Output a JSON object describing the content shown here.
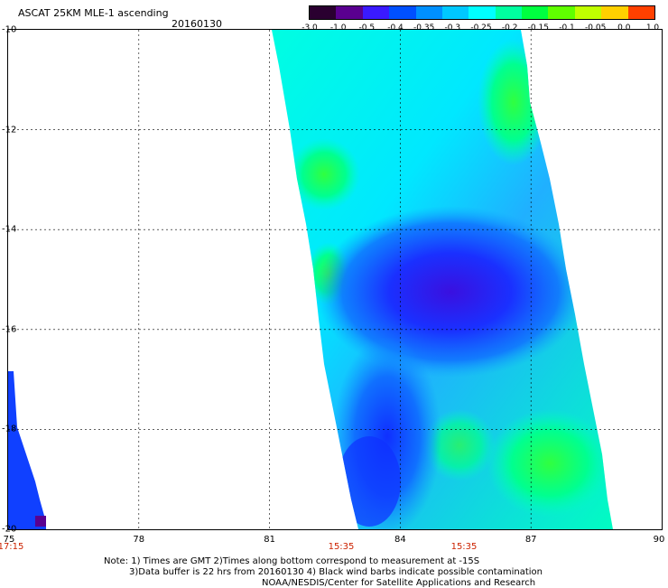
{
  "header": {
    "title": "ASCAT 25KM MLE-1 ascending",
    "date": "20160130"
  },
  "colorbar": {
    "labels": [
      "-3.0",
      "-1.0",
      "-0.5",
      "-0.4",
      "-0.35",
      "-0.3",
      "-0.25",
      "-0.2",
      "-0.15",
      "-0.1",
      "-0.05",
      "0.0",
      "1.0"
    ],
    "colors": [
      "#2a0030",
      "#5a0090",
      "#3a1aff",
      "#0050ff",
      "#0090ff",
      "#00c8ff",
      "#00ffff",
      "#00ffa0",
      "#00ff40",
      "#60ff00",
      "#c0ff00",
      "#ffd000",
      "#ff4000"
    ]
  },
  "axes": {
    "lat_labels": [
      "-10",
      "-12",
      "-14",
      "-16",
      "-18",
      "-20"
    ],
    "lon_labels": [
      "75",
      "78",
      "81",
      "84",
      "87",
      "90"
    ],
    "time_labels": [
      "17:15",
      "15:35",
      "15:35"
    ]
  },
  "notes": {
    "line1": "Note: 1) Times are GMT 2)Times along bottom correspond to measurement at -15S",
    "line2": "3)Data buffer is 22 hrs from 20160130 4) Black wind barbs indicate possible contamination",
    "line3": "NOAA/NESDIS/Center for Satellite Applications and Research"
  }
}
